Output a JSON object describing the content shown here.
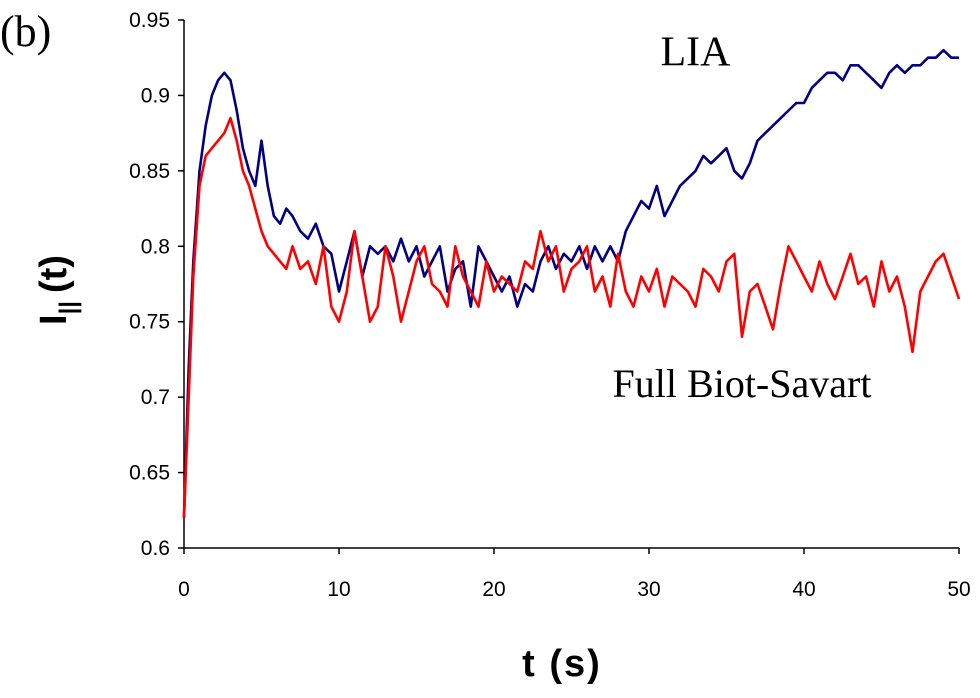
{
  "panel_label": "(b)",
  "chart_data": {
    "type": "line",
    "xlabel": "t (s)",
    "ylabel_main": "I",
    "ylabel_sub": "||",
    "ylabel_tail": "(t)",
    "xlim": [
      0,
      50
    ],
    "ylim": [
      0.6,
      0.95
    ],
    "xticks": [
      0,
      10,
      20,
      30,
      40,
      50
    ],
    "xtick_labels": [
      "0",
      "10",
      "20",
      "30",
      "40",
      "50"
    ],
    "yticks": [
      0.6,
      0.65,
      0.7,
      0.75,
      0.8,
      0.85,
      0.9,
      0.95
    ],
    "ytick_labels": [
      "0.6",
      "0.65",
      "0.7",
      "0.75",
      "0.8",
      "0.85",
      "0.9",
      "0.95"
    ],
    "grid": false,
    "series": [
      {
        "name": "LIA",
        "color": "#000080",
        "x": [
          0,
          0.3,
          0.6,
          1.0,
          1.4,
          1.8,
          2.2,
          2.6,
          3.0,
          3.4,
          3.8,
          4.2,
          4.6,
          5.0,
          5.4,
          5.8,
          6.2,
          6.6,
          7.0,
          7.5,
          8.0,
          8.5,
          9.0,
          9.5,
          10.0,
          10.5,
          11.0,
          11.5,
          12.0,
          12.5,
          13.0,
          13.5,
          14.0,
          14.5,
          15.0,
          15.5,
          16.0,
          16.5,
          17.0,
          17.5,
          18.0,
          18.5,
          19.0,
          19.5,
          20.0,
          20.5,
          21.0,
          21.5,
          22.0,
          22.5,
          23.0,
          23.5,
          24.0,
          24.5,
          25.0,
          25.5,
          26.0,
          26.5,
          27.0,
          27.5,
          28.0,
          28.5,
          29.0,
          29.5,
          30.0,
          30.5,
          31.0,
          31.5,
          32.0,
          32.5,
          33.0,
          33.5,
          34.0,
          34.5,
          35.0,
          35.5,
          36.0,
          36.5,
          37.0,
          37.5,
          38.0,
          38.5,
          39.0,
          39.5,
          40.0,
          40.5,
          41.0,
          41.5,
          42.0,
          42.5,
          43.0,
          43.5,
          44.0,
          44.5,
          45.0,
          45.5,
          46.0,
          46.5,
          47.0,
          47.5,
          48.0,
          48.5,
          49.0,
          49.5,
          50.0
        ],
        "y": [
          0.62,
          0.72,
          0.79,
          0.85,
          0.88,
          0.9,
          0.91,
          0.915,
          0.91,
          0.89,
          0.865,
          0.85,
          0.84,
          0.87,
          0.84,
          0.82,
          0.815,
          0.825,
          0.82,
          0.81,
          0.805,
          0.815,
          0.8,
          0.795,
          0.77,
          0.79,
          0.81,
          0.78,
          0.8,
          0.795,
          0.8,
          0.79,
          0.805,
          0.79,
          0.8,
          0.78,
          0.79,
          0.8,
          0.77,
          0.785,
          0.79,
          0.76,
          0.8,
          0.79,
          0.78,
          0.77,
          0.78,
          0.76,
          0.775,
          0.77,
          0.79,
          0.8,
          0.785,
          0.795,
          0.79,
          0.8,
          0.785,
          0.8,
          0.79,
          0.8,
          0.79,
          0.81,
          0.82,
          0.83,
          0.825,
          0.84,
          0.82,
          0.83,
          0.84,
          0.845,
          0.85,
          0.86,
          0.855,
          0.86,
          0.865,
          0.85,
          0.845,
          0.855,
          0.87,
          0.875,
          0.88,
          0.885,
          0.89,
          0.895,
          0.895,
          0.905,
          0.91,
          0.915,
          0.915,
          0.91,
          0.92,
          0.92,
          0.915,
          0.91,
          0.905,
          0.915,
          0.92,
          0.915,
          0.92,
          0.92,
          0.925,
          0.925,
          0.93,
          0.925,
          0.925
        ]
      },
      {
        "name": "Full Biot-Savart",
        "color": "#ff0000",
        "x": [
          0,
          0.3,
          0.6,
          1.0,
          1.4,
          1.8,
          2.2,
          2.6,
          3.0,
          3.4,
          3.8,
          4.2,
          4.6,
          5.0,
          5.4,
          5.8,
          6.2,
          6.6,
          7.0,
          7.5,
          8.0,
          8.5,
          9.0,
          9.5,
          10.0,
          10.5,
          11.0,
          11.5,
          12.0,
          12.5,
          13.0,
          13.5,
          14.0,
          14.5,
          15.0,
          15.5,
          16.0,
          16.5,
          17.0,
          17.5,
          18.0,
          18.5,
          19.0,
          19.5,
          20.0,
          20.5,
          21.0,
          21.5,
          22.0,
          22.5,
          23.0,
          23.5,
          24.0,
          24.5,
          25.0,
          25.5,
          26.0,
          26.5,
          27.0,
          27.5,
          28.0,
          28.5,
          29.0,
          29.5,
          30.0,
          30.5,
          31.0,
          31.5,
          32.0,
          32.5,
          33.0,
          33.5,
          34.0,
          34.5,
          35.0,
          35.5,
          36.0,
          36.5,
          37.0,
          37.5,
          38.0,
          38.5,
          39.0,
          39.5,
          40.0,
          40.5,
          41.0,
          41.5,
          42.0,
          42.5,
          43.0,
          43.5,
          44.0,
          44.5,
          45.0,
          45.5,
          46.0,
          46.5,
          47.0,
          47.5,
          48.0,
          48.5,
          49.0,
          49.5,
          50.0
        ],
        "y": [
          0.62,
          0.7,
          0.78,
          0.84,
          0.86,
          0.865,
          0.87,
          0.875,
          0.885,
          0.87,
          0.85,
          0.84,
          0.825,
          0.81,
          0.8,
          0.795,
          0.79,
          0.785,
          0.8,
          0.785,
          0.79,
          0.775,
          0.8,
          0.76,
          0.75,
          0.77,
          0.81,
          0.78,
          0.75,
          0.76,
          0.8,
          0.78,
          0.75,
          0.77,
          0.79,
          0.8,
          0.775,
          0.77,
          0.76,
          0.8,
          0.78,
          0.77,
          0.76,
          0.79,
          0.77,
          0.78,
          0.775,
          0.77,
          0.79,
          0.785,
          0.81,
          0.79,
          0.8,
          0.77,
          0.785,
          0.79,
          0.8,
          0.77,
          0.78,
          0.76,
          0.795,
          0.77,
          0.76,
          0.78,
          0.77,
          0.785,
          0.76,
          0.78,
          0.775,
          0.77,
          0.76,
          0.785,
          0.78,
          0.77,
          0.79,
          0.795,
          0.74,
          0.77,
          0.775,
          0.76,
          0.745,
          0.775,
          0.8,
          0.79,
          0.78,
          0.77,
          0.79,
          0.775,
          0.765,
          0.78,
          0.795,
          0.775,
          0.78,
          0.76,
          0.79,
          0.77,
          0.78,
          0.76,
          0.73,
          0.77,
          0.78,
          0.79,
          0.795,
          0.78,
          0.765
        ]
      }
    ],
    "annotations": [
      {
        "text": "LIA",
        "x": 33,
        "y": 0.92
      },
      {
        "text": "Full Biot-Savart",
        "x": 36,
        "y": 0.7
      }
    ]
  }
}
